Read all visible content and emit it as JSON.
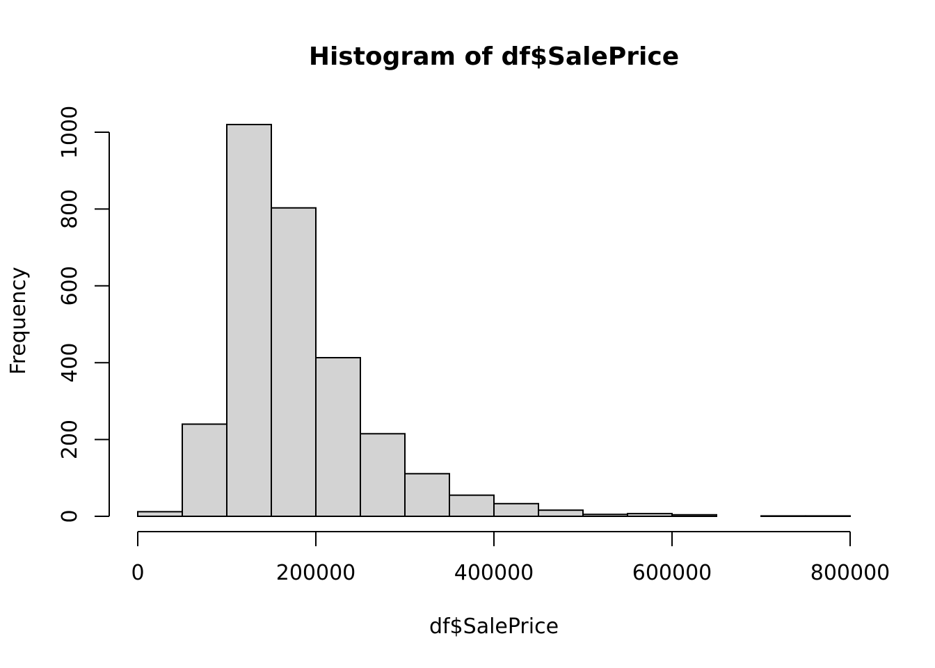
{
  "chart_data": {
    "type": "bar",
    "title": "Histogram of df$SalePrice",
    "xlabel": "df$SalePrice",
    "ylabel": "Frequency",
    "bins": [
      {
        "from": 0,
        "to": 50000,
        "count": 12
      },
      {
        "from": 50000,
        "to": 100000,
        "count": 240
      },
      {
        "from": 100000,
        "to": 150000,
        "count": 1020
      },
      {
        "from": 150000,
        "to": 200000,
        "count": 803
      },
      {
        "from": 200000,
        "to": 250000,
        "count": 413
      },
      {
        "from": 250000,
        "to": 300000,
        "count": 215
      },
      {
        "from": 300000,
        "to": 350000,
        "count": 111
      },
      {
        "from": 350000,
        "to": 400000,
        "count": 55
      },
      {
        "from": 400000,
        "to": 450000,
        "count": 33
      },
      {
        "from": 450000,
        "to": 500000,
        "count": 16
      },
      {
        "from": 500000,
        "to": 550000,
        "count": 5
      },
      {
        "from": 550000,
        "to": 600000,
        "count": 7
      },
      {
        "from": 600000,
        "to": 650000,
        "count": 4
      },
      {
        "from": 650000,
        "to": 700000,
        "count": 0
      },
      {
        "from": 700000,
        "to": 750000,
        "count": 1
      },
      {
        "from": 750000,
        "to": 800000,
        "count": 1
      }
    ],
    "xlim": [
      0,
      800000
    ],
    "ylim": [
      0,
      1000
    ],
    "xticks": [
      0,
      200000,
      400000,
      600000,
      800000
    ],
    "xtick_labels": [
      "0",
      "200000",
      "400000",
      "600000",
      "800000"
    ],
    "yticks": [
      0,
      200,
      400,
      600,
      800,
      1000
    ],
    "ytick_labels": [
      "0",
      "200",
      "400",
      "600",
      "800",
      "1000"
    ],
    "grid": false,
    "bar_color": "#d3d3d3",
    "edge_color": "#000000"
  }
}
